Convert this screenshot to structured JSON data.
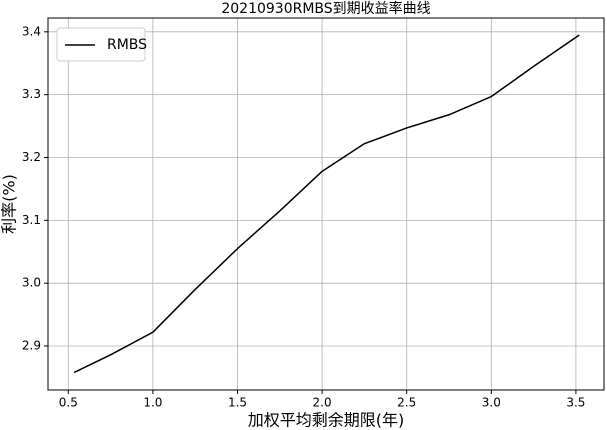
{
  "chart_data": {
    "type": "line",
    "title": "20210930RMBS到期收益率曲线",
    "x_label": "加权平均剩余期限(年)",
    "y_label": "利率(%)",
    "x": [
      0.535,
      0.75,
      1.0,
      1.25,
      1.5,
      1.75,
      2.0,
      2.25,
      2.5,
      2.75,
      3.0,
      3.25,
      3.52
    ],
    "series": [
      {
        "name": "RMBS",
        "color": "#000000",
        "values": [
          2.858,
          2.886,
          2.922,
          2.99,
          3.055,
          3.115,
          3.178,
          3.222,
          3.247,
          3.268,
          3.297,
          3.345,
          3.395
        ]
      }
    ],
    "xlim": [
      0.38,
      3.666
    ],
    "ylim": [
      2.83,
      3.422
    ],
    "xticks": [
      0.5,
      {
        "value": 1.0,
        "label": "1.0"
      },
      1.5,
      {
        "value": 2.0,
        "label": "2.0"
      },
      2.5,
      {
        "value": 3.0,
        "label": "3.0"
      },
      3.5
    ],
    "yticks": [
      2.9,
      {
        "value": 3.0,
        "label": "3.0"
      },
      3.1,
      3.2,
      3.3,
      3.4
    ],
    "grid": true,
    "legend": "upper-left"
  }
}
